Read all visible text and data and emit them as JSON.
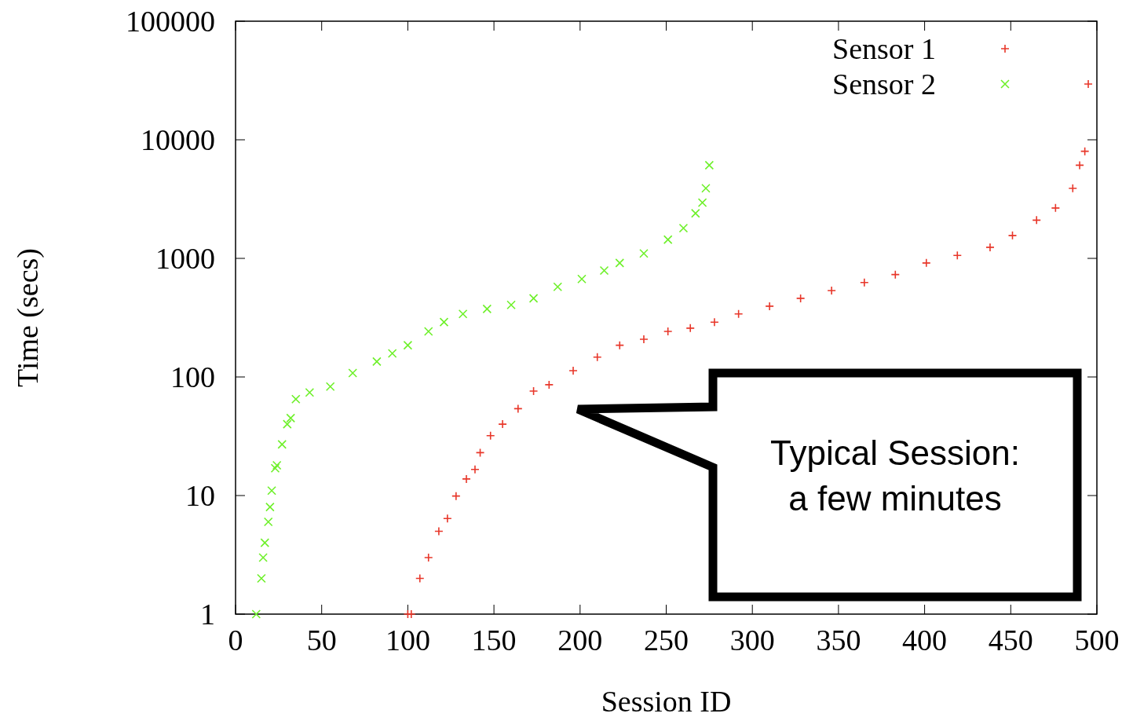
{
  "chart_data": {
    "type": "scatter",
    "xlabel": "Session ID",
    "ylabel": "Time (secs)",
    "log": "y",
    "grid": false,
    "legend": "top right",
    "xlim": [
      0,
      500
    ],
    "xticks": [
      0,
      50,
      100,
      150,
      200,
      250,
      300,
      350,
      400,
      450,
      500
    ],
    "ylim": [
      1,
      100000
    ],
    "yticks": [
      1,
      10,
      100,
      1000,
      10000,
      100000
    ],
    "annotations": [
      "Typical Session:\na few minutes"
    ],
    "series": [
      {
        "name": "Sensor 1",
        "color": "#e8372a",
        "marker": "cross",
        "x": [
          100,
          102,
          107,
          112,
          118,
          123,
          128,
          134,
          139,
          142,
          148,
          155,
          164,
          173,
          182,
          196,
          210,
          223,
          237,
          251,
          264,
          278,
          292,
          310,
          328,
          346,
          365,
          383,
          401,
          419,
          438,
          451,
          465,
          476,
          486,
          490,
          493,
          495
        ],
        "values": [
          1,
          1,
          2,
          3,
          5,
          6.4,
          9.9,
          13.8,
          16.6,
          23,
          32,
          40,
          54,
          76,
          86,
          113,
          147,
          185,
          208,
          242,
          258,
          290,
          340,
          395,
          460,
          535,
          625,
          730,
          915,
          1060,
          1240,
          1560,
          2100,
          2660,
          3900,
          6100,
          8000,
          29500
        ]
      },
      {
        "name": "Sensor 2",
        "color": "#6ef02a",
        "marker": "x",
        "x": [
          12,
          15,
          16,
          17,
          19,
          20,
          21,
          23,
          24,
          27,
          30,
          32,
          35,
          43,
          55,
          68,
          82,
          91,
          100,
          112,
          121,
          132,
          146,
          160,
          173,
          187,
          201,
          214,
          223,
          237,
          251,
          260,
          267,
          271,
          273,
          275
        ],
        "values": [
          1,
          2,
          3,
          4,
          6,
          8,
          11,
          17,
          18,
          27,
          40,
          45,
          65,
          74,
          83,
          108,
          135,
          158,
          185,
          242,
          290,
          340,
          375,
          405,
          460,
          575,
          670,
          790,
          915,
          1100,
          1440,
          1800,
          2400,
          2950,
          3900,
          6100
        ]
      }
    ]
  }
}
